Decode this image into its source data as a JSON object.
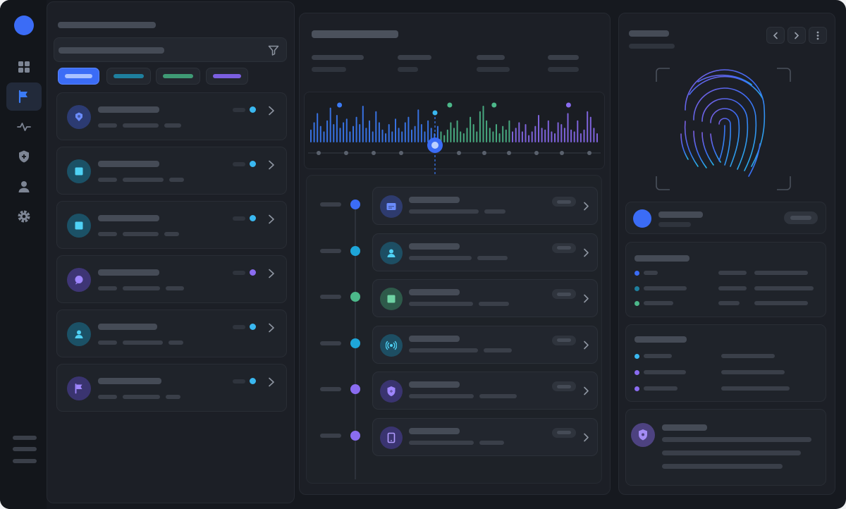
{
  "colors": {
    "accent_blue": "#3b6cf6",
    "teal": "#1ea6d9",
    "green": "#4cb88a",
    "violet": "#8a6cf0",
    "panel": "#1c1f26",
    "background": "#16191f"
  },
  "rail": {
    "items": [
      {
        "icon": "grid-icon",
        "active": false
      },
      {
        "icon": "flag-icon",
        "active": true
      },
      {
        "icon": "activity-icon",
        "active": false
      },
      {
        "icon": "shield-icon",
        "active": false
      },
      {
        "icon": "user-icon",
        "active": false
      },
      {
        "icon": "gear-icon",
        "active": false
      }
    ]
  },
  "left_panel": {
    "filter_icon": "filter-icon",
    "chips": [
      {
        "color": "#3b6cf6",
        "selected": true
      },
      {
        "color": "#1e7f9e",
        "selected": false
      },
      {
        "color": "#3f9a75",
        "selected": false
      },
      {
        "color": "#7b5fe0",
        "selected": false
      }
    ],
    "cards": [
      {
        "icon": "badge-icon",
        "status": "#3ab8f0"
      },
      {
        "icon": "square-icon",
        "status": "#3ab8f0"
      },
      {
        "icon": "square-icon",
        "status": "#3ab8f0"
      },
      {
        "icon": "chat-icon",
        "status": "#8a6cf0"
      },
      {
        "icon": "user-icon",
        "status": "#3ab8f0"
      },
      {
        "icon": "flag-icon",
        "status": "#3ab8f0"
      }
    ]
  },
  "activity": {
    "histogram_levels": [
      0.35,
      0.55,
      0.8,
      0.45,
      0.3,
      0.6,
      0.95,
      0.5,
      0.75,
      0.4,
      0.55,
      0.65,
      0.3,
      0.45,
      0.7,
      0.5,
      1.0,
      0.4,
      0.6,
      0.3,
      0.85,
      0.55,
      0.35,
      0.25,
      0.5,
      0.3,
      0.65,
      0.4,
      0.3,
      0.55,
      0.7,
      0.35,
      0.45,
      0.9,
      0.5,
      0.3,
      0.6,
      0.4,
      0.25,
      0.45,
      0.3,
      0.2,
      0.35,
      0.55,
      0.4,
      0.6,
      0.3,
      0.25,
      0.4,
      0.7,
      0.5,
      0.3,
      0.85,
      1.0,
      0.6,
      0.4,
      0.3,
      0.5,
      0.25,
      0.45,
      0.35,
      0.6,
      0.3,
      0.4,
      0.55,
      0.3,
      0.5,
      0.2,
      0.3,
      0.45,
      0.75,
      0.4,
      0.35,
      0.6,
      0.3,
      0.25,
      0.55,
      0.5,
      0.4,
      0.8,
      0.35,
      0.3,
      0.6,
      0.25,
      0.35,
      0.85,
      0.7,
      0.4,
      0.25
    ],
    "peaks": [
      0.1,
      0.485,
      0.64,
      0.9
    ]
  },
  "timeline": [
    {
      "icon": "card-icon",
      "color": "#3b6cf6"
    },
    {
      "icon": "user-icon",
      "color": "#1ea6d9"
    },
    {
      "icon": "square-icon",
      "color": "#4cb88a"
    },
    {
      "icon": "signal-icon",
      "color": "#1ea6d9"
    },
    {
      "icon": "shield-icon",
      "color": "#8a6cf0"
    },
    {
      "icon": "tablet-icon",
      "color": "#8a6cf0"
    }
  ],
  "right_panel": {
    "fingerprint_icon": "fingerprint-icon",
    "identity_avatar_color": "#3b6cf6",
    "details_rows": [
      "#3b6cf6",
      "#1e7f9e",
      "#4cb88a"
    ],
    "permissions_rows": [
      "#3ab8f0",
      "#8a6cf0",
      "#8a6cf0"
    ],
    "security_icon": "shield-icon"
  }
}
